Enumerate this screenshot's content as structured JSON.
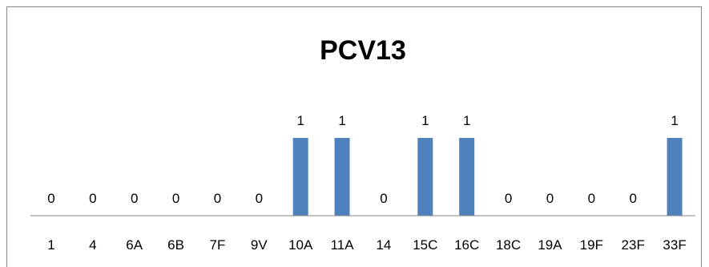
{
  "chart_data": {
    "type": "bar",
    "title": "PCV13",
    "categories": [
      "1",
      "4",
      "6A",
      "6B",
      "7F",
      "9V",
      "10A",
      "11A",
      "14",
      "15C",
      "16C",
      "18C",
      "19A",
      "19F",
      "23F",
      "33F"
    ],
    "values": [
      0,
      0,
      0,
      0,
      0,
      0,
      1,
      1,
      0,
      1,
      1,
      0,
      0,
      0,
      0,
      1
    ],
    "data_labels": [
      "0",
      "0",
      "0",
      "0",
      "0",
      "0",
      "1",
      "1",
      "0",
      "1",
      "1",
      "0",
      "0",
      "0",
      "0",
      "1"
    ],
    "xlabel": "",
    "ylabel": "",
    "ylim": [
      0,
      1
    ],
    "grid": false,
    "legend": "none",
    "colors": {
      "bar": "#4F81BD",
      "axis": "#868686",
      "text": "#000000"
    }
  }
}
